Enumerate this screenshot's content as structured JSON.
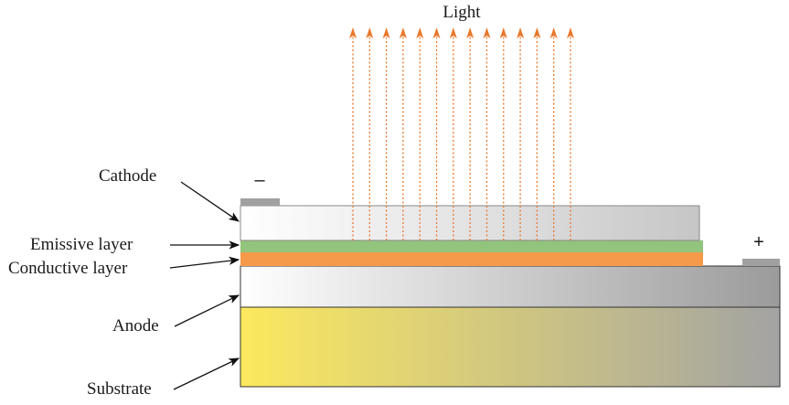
{
  "diagram": {
    "title": "Light",
    "labels": {
      "cathode": "Cathode",
      "emissive": "Emissive layer",
      "conductive": "Conductive layer",
      "anode": "Anode",
      "substrate": "Substrate"
    },
    "terminals": {
      "negative": "–",
      "positive": "+"
    },
    "light_ray_count": 14,
    "colors": {
      "cathode_start": "#ffffff",
      "cathode_end": "#c6c6c6",
      "emissive": "#93c47d",
      "conductive": "#f59a4a",
      "anode_start": "#ffffff",
      "anode_end": "#9b9b9b",
      "substrate_start": "#fce95e",
      "substrate_end": "#a3a3a3",
      "contact": "#a0a0a0",
      "ray": "#e8782c",
      "outline": "#333333"
    }
  }
}
